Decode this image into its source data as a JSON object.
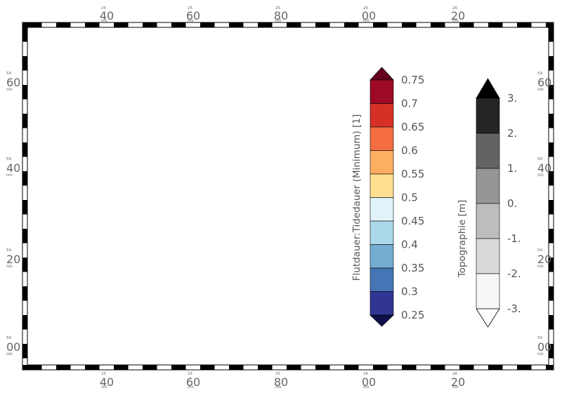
{
  "map": {
    "top_ticks": [
      {
        "deg": "25",
        "min": "40",
        "sec": "000"
      },
      {
        "deg": "25",
        "min": "60",
        "sec": "000"
      },
      {
        "deg": "25",
        "min": "80",
        "sec": "000"
      },
      {
        "deg": "26",
        "min": "00",
        "sec": "000"
      },
      {
        "deg": "26",
        "min": "20",
        "sec": "000"
      }
    ],
    "bottom_ticks": [
      {
        "deg": "25",
        "min": "40",
        "sec": "000"
      },
      {
        "deg": "25",
        "min": "60",
        "sec": "000"
      },
      {
        "deg": "25",
        "min": "80",
        "sec": "000"
      },
      {
        "deg": "26",
        "min": "00",
        "sec": "000"
      },
      {
        "deg": "26",
        "min": "20",
        "sec": "000"
      }
    ],
    "left_ticks": [
      {
        "deg": "59",
        "min": "60",
        "sec": "000"
      },
      {
        "deg": "59",
        "min": "40",
        "sec": "000"
      },
      {
        "deg": "59",
        "min": "20",
        "sec": "000"
      },
      {
        "deg": "59",
        "min": "00",
        "sec": "000"
      }
    ],
    "right_ticks": [
      {
        "deg": "59",
        "min": "60",
        "sec": "000"
      },
      {
        "deg": "59",
        "min": "40",
        "sec": "000"
      },
      {
        "deg": "59",
        "min": "20",
        "sec": "000"
      },
      {
        "deg": "59",
        "min": "00",
        "sec": "000"
      }
    ]
  },
  "legend_flood": {
    "title": "Flutdauer:Tidedauer (Minimum) [1]",
    "labels": [
      "0.75",
      "0.7",
      "0.65",
      "0.6",
      "0.55",
      "0.5",
      "0.45",
      "0.4",
      "0.35",
      "0.3",
      "0.25"
    ],
    "colors": [
      "#9e0a26",
      "#d73027",
      "#f46d43",
      "#fdae61",
      "#fee090",
      "#e0f3f8",
      "#abd9e9",
      "#74add1",
      "#4575b4",
      "#313695"
    ],
    "over_color": "#67001f",
    "under_color": "#0f0f4a"
  },
  "legend_topo": {
    "title": "Topographie [m]",
    "labels": [
      "3.",
      "2.",
      "1.",
      "0.",
      "-1.",
      "-2.",
      "-3."
    ],
    "colors": [
      "#252525",
      "#636363",
      "#969696",
      "#bdbdbd",
      "#d9d9d9",
      "#f7f7f7"
    ],
    "over_color": "#000000",
    "under_color": "#ffffff"
  },
  "map_colors": {
    "sea": "#e0f3f8",
    "sea_mid": "#abd9e9",
    "flat_deep": "#313695",
    "flat_mid": "#4575b4",
    "flat_light": "#74add1",
    "land_dark": "#969696",
    "land_light": "#c8c8c8",
    "yellow": "#fee090",
    "river": "#4575b4"
  }
}
